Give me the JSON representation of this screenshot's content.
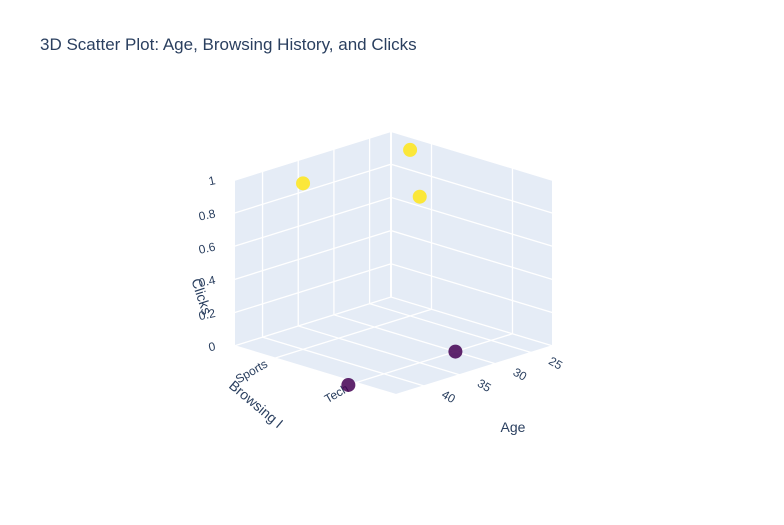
{
  "chart_data": {
    "type": "scatter",
    "title": "3D Scatter Plot: Age, Browsing History, and Clicks",
    "axes": {
      "x": {
        "title": "Age",
        "type": "linear",
        "range": [
          22,
          44
        ],
        "ticks": [
          "25",
          "30",
          "35",
          "40"
        ]
      },
      "y": {
        "title": "Browsing History",
        "type": "category",
        "categories": [
          "Sports",
          "Tech"
        ]
      },
      "z": {
        "title": "Clicks",
        "type": "linear",
        "range": [
          0,
          1
        ],
        "ticks": [
          "0",
          "0.2",
          "0.4",
          "0.6",
          "0.8",
          "1"
        ]
      }
    },
    "points": [
      {
        "age": 25,
        "browsing": "Sports",
        "clicks": 1
      },
      {
        "age": 40,
        "browsing": "Sports",
        "clicks": 1
      },
      {
        "age": 30,
        "browsing": "Tech",
        "clicks": 0
      },
      {
        "age": 35,
        "browsing": "Tech",
        "clicks": 1
      },
      {
        "age": 45,
        "browsing": "Tech",
        "clicks": 0
      }
    ],
    "colorscale": {
      "name": "Viridis",
      "low": "#440154",
      "high": "#fde725"
    },
    "grid": true,
    "legend": "none"
  }
}
